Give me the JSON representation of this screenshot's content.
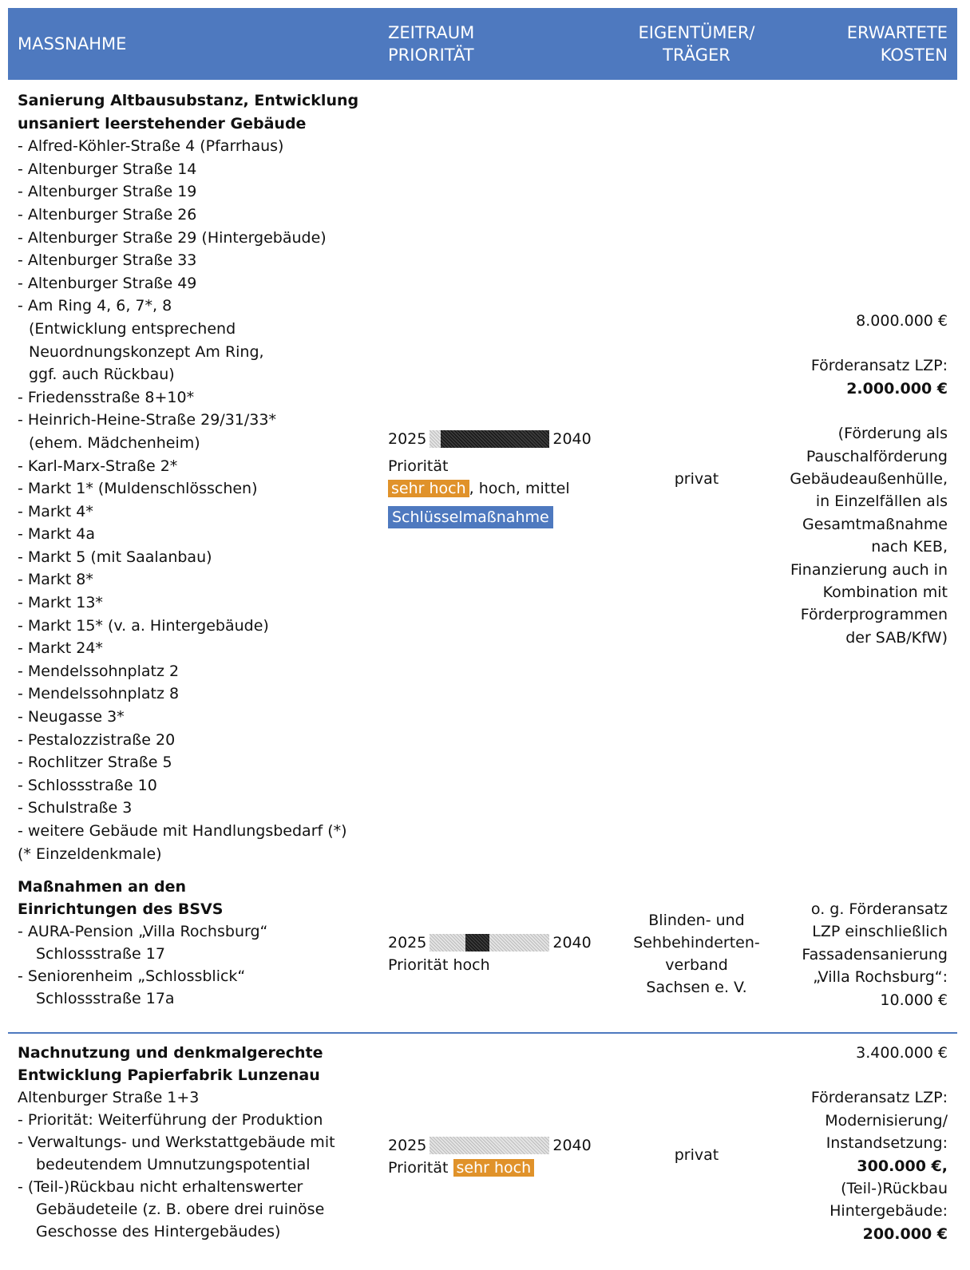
{
  "header": {
    "col1": "MASSNAHME",
    "col2_line1": "ZEITRAUM",
    "col2_line2": "PRIORITÄT",
    "col3_line1": "EIGENTÜMER/",
    "col3_line2": "TRÄGER",
    "col4_line1": "ERWARTETE",
    "col4_line2": "KOSTEN"
  },
  "rows": [
    {
      "title1": "Sanierung Altbausubstanz, Entwicklung",
      "title2": "unsaniert leerstehender Gebäude",
      "items": [
        "- Alfred-Köhler-Straße 4 (Pfarrhaus)",
        "- Altenburger Straße 14",
        "- Altenburger Straße 19",
        "- Altenburger Straße 26",
        "- Altenburger Straße 29 (Hintergebäude)",
        "- Altenburger Straße 33",
        "- Altenburger Straße 49",
        "- Am Ring 4, 6, 7*, 8",
        " (Entwicklung entsprechend",
        " Neuordnungskonzept Am Ring,",
        " ggf. auch Rückbau)",
        "- Friedensstraße 8+10*",
        "- Heinrich-Heine-Straße 29/31/33*",
        " (ehem. Mädchenheim)",
        "- Karl-Marx-Straße 2*",
        "- Markt 1* (Muldenschlösschen)",
        "- Markt 4*",
        "- Markt 4a",
        "- Markt 5 (mit Saalanbau)",
        "- Markt 8*",
        "- Markt 13*",
        "- Markt 15* (v. a. Hintergebäude)",
        "- Markt 24*",
        "- Mendelssohnplatz 2",
        "- Mendelssohnplatz 8",
        "- Neugasse 3*",
        "- Pestalozzistraße 20",
        "- Rochlitzer Straße 5",
        "- Schlossstraße 10",
        "- Schulstraße 3",
        "- weitere Gebäude mit Handlungsbedarf (*)",
        "(* Einzeldenkmale)"
      ],
      "year_start": "2025",
      "year_end": "2040",
      "priority_label": "Priorität",
      "priority_high": "sehr hoch",
      "priority_rest": ", hoch, mittel",
      "key_label": "Schlüsselmaßnahme",
      "owner": "privat",
      "cost_main": "8.000.000 €",
      "cost_lines": [
        "Förderansatz LZP:",
        "2.000.000 €",
        "",
        "(Förderung als",
        "Pauschalförderung",
        "Gebäudeaußenhülle,",
        "in Einzelfällen als",
        "Gesamtmaßnahme",
        "nach KEB,",
        "Finanzierung auch in",
        "Kombination mit",
        "Förderprogrammen",
        "der SAB/KfW)"
      ]
    },
    {
      "title1": "Maßnahmen an den",
      "title2": "Einrichtungen des BSVS",
      "items": [
        "- AURA-Pension „Villa Rochsburg“",
        "Schlossstraße 17",
        "- Seniorenheim „Schlossblick“",
        "Schlossstraße 17a"
      ],
      "year_start": "2025",
      "year_end": "2040",
      "priority_text": "Priorität hoch",
      "owner_lines": [
        "Blinden- und",
        "Sehbehinderten-",
        "verband",
        "Sachsen e. V."
      ],
      "cost_lines": [
        "o. g. Förderansatz",
        "LZP einschließlich",
        "Fassadensanierung",
        "„Villa Rochsburg“:",
        "10.000 €"
      ]
    },
    {
      "title1": "Nachnutzung und denkmalgerechte",
      "title2": "Entwicklung Papierfabrik Lunzenau",
      "items": [
        "Altenburger Straße 1+3",
        "- Priorität: Weiterführung der Produktion",
        "- Verwaltungs- und Werkstattgebäude mit",
        "bedeutendem Umnutzungspotential",
        "- (Teil-)Rückbau nicht erhaltenswerter",
        "Gebäudeteile (z. B. obere drei ruinöse",
        "Geschosse des Hintergebäudes)"
      ],
      "year_start": "2025",
      "year_end": "2040",
      "priority_label": "Priorität",
      "priority_high": "sehr hoch",
      "owner": "privat",
      "cost_lines": [
        "3.400.000 €",
        "",
        "Förderansatz LZP:",
        "Modernisierung/",
        "Instandsetzung:",
        "300.000 €,",
        "(Teil-)Rückbau",
        "Hintergebäude:",
        "200.000 €"
      ]
    }
  ]
}
